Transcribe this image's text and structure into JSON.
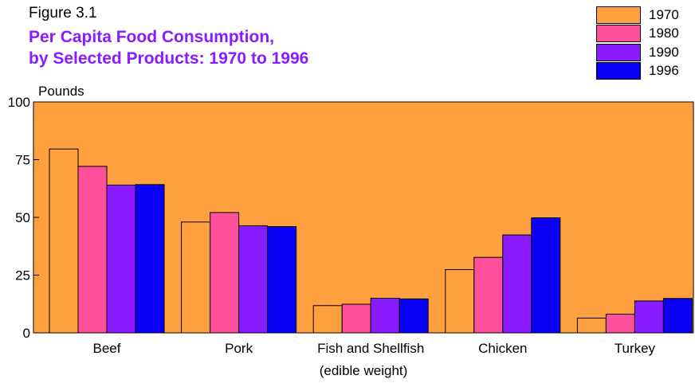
{
  "figure_label": "Figure 3.1",
  "title_line1": "Per Capita Food Consumption,",
  "title_line2": "by Selected Products:  1970 to 1996",
  "colors": {
    "title": "#8a1aff",
    "background": "#ffa040"
  },
  "chart_data": {
    "type": "bar",
    "ylabel": "Pounds",
    "xlabel": "(edible weight)",
    "ylim": [
      0,
      100
    ],
    "yticks": [
      0,
      25,
      50,
      75,
      100
    ],
    "grid": false,
    "legend_position": "top-right",
    "categories": [
      "Beef",
      "Pork",
      "Fish and Shellfish",
      "Chicken",
      "Turkey"
    ],
    "series": [
      {
        "name": "1970",
        "color": "#ffa040",
        "values": [
          79.6,
          48.0,
          11.8,
          27.4,
          6.4
        ]
      },
      {
        "name": "1980",
        "color": "#ff4f9a",
        "values": [
          72.1,
          52.1,
          12.4,
          32.7,
          8.1
        ]
      },
      {
        "name": "1990",
        "color": "#8a1aff",
        "values": [
          64.0,
          46.4,
          15.0,
          42.4,
          13.8
        ]
      },
      {
        "name": "1996",
        "color": "#0a00f5",
        "values": [
          64.2,
          46.0,
          14.7,
          49.8,
          14.9
        ]
      }
    ]
  }
}
